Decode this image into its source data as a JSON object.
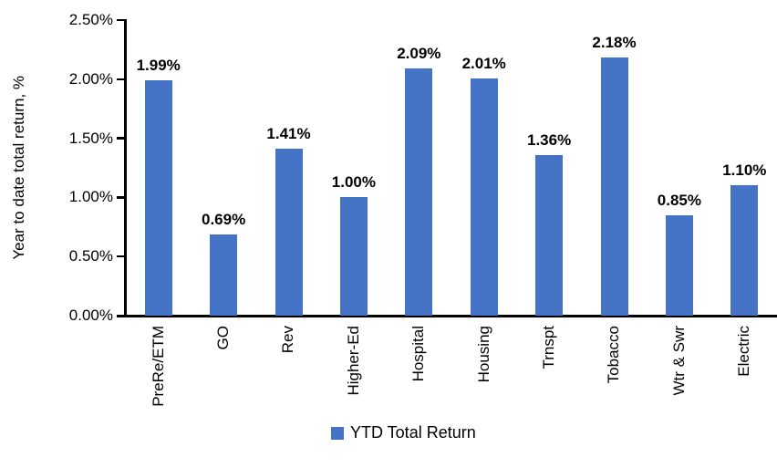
{
  "chart_data": {
    "type": "bar",
    "title": "",
    "categories": [
      "PreRe/ETM",
      "GO",
      "Rev",
      "Higher-Ed",
      "Hospital",
      "Housing",
      "Trnspt",
      "Tobacco",
      "Wtr & Swr",
      "Electric"
    ],
    "series": [
      {
        "name": "YTD Total Return",
        "values": [
          1.99,
          0.69,
          1.41,
          1.0,
          2.09,
          2.01,
          1.36,
          2.18,
          0.85,
          1.1
        ],
        "color": "#4472C4"
      }
    ],
    "value_labels": [
      "1.99%",
      "0.69%",
      "1.41%",
      "1.00%",
      "2.09%",
      "2.01%",
      "1.36%",
      "2.18%",
      "0.85%",
      "1.10%"
    ],
    "xlabel": "",
    "ylabel": "Year to date total return, %",
    "ylim": [
      0,
      2.5
    ],
    "ytick_interval": 0.5,
    "yticks": [
      "0.00%",
      "0.50%",
      "1.00%",
      "1.50%",
      "2.00%",
      "2.50%"
    ],
    "grid": false,
    "legend_position": "bottom",
    "axis_color": "#000000",
    "text_color": "#000000",
    "background_color": "#FFFFFF"
  }
}
